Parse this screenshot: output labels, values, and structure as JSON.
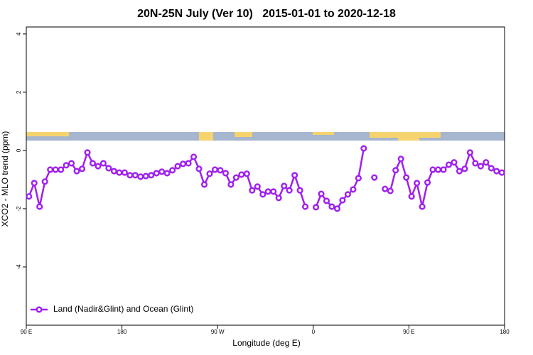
{
  "chart_data": {
    "type": "line",
    "title": "20N-25N July (Ver 10)   2015-01-01 to 2020-12-18",
    "x_label": "Longitude (deg E)",
    "y_label": "XCO2 - MLO trend (ppm)",
    "x": [
      92.5,
      97.5,
      102.5,
      107.5,
      112.5,
      117.5,
      122.5,
      127.5,
      132.5,
      137.5,
      142.5,
      147.5,
      152.5,
      157.5,
      162.5,
      167.5,
      172.5,
      177.5,
      182.5,
      187.5,
      192.5,
      197.5,
      202.5,
      207.5,
      212.5,
      217.5,
      222.5,
      227.5,
      232.5,
      237.5,
      242.5,
      247.5,
      252.5,
      257.5,
      262.5,
      267.5,
      272.5,
      277.5,
      282.5,
      287.5,
      292.5,
      297.5,
      302.5,
      307.5,
      312.5,
      317.5,
      322.5,
      327.5,
      332.5,
      337.5,
      342.5,
      347.5,
      352.5,
      357.5,
      362.5,
      367.5,
      372.5,
      377.5,
      382.5,
      387.5,
      392.5,
      397.5,
      402.5,
      407.5,
      412.5,
      417.5,
      422.5,
      427.5,
      432.5,
      437.5,
      442.5,
      447.5,
      452.5,
      457.5,
      462.5,
      467.5,
      472.5,
      477.5,
      482.5,
      487.5,
      492.5,
      497.5,
      502.5,
      507.5,
      512.5,
      517.5,
      522.5,
      527.5,
      532.5,
      537.5
    ],
    "series": [
      {
        "name": "Land (Nadir&Glint) and Ocean (Glint)",
        "color": "#a020f0",
        "values": [
          -1.58,
          -1.12,
          -1.93,
          -1.07,
          -0.66,
          -0.66,
          -0.66,
          -0.51,
          -0.44,
          -0.71,
          -0.63,
          -0.07,
          -0.44,
          -0.54,
          -0.44,
          -0.61,
          -0.71,
          -0.76,
          -0.76,
          -0.85,
          -0.85,
          -0.9,
          -0.88,
          -0.85,
          -0.78,
          -0.73,
          -0.78,
          -0.68,
          -0.54,
          -0.46,
          -0.44,
          -0.22,
          -0.63,
          -1.17,
          -0.8,
          -0.66,
          -0.68,
          -0.78,
          -1.17,
          -0.93,
          -0.83,
          -0.8,
          -1.37,
          -1.24,
          -1.51,
          -1.41,
          -1.41,
          -1.63,
          -1.22,
          -1.37,
          -0.85,
          -1.37,
          -1.93,
          null,
          -1.95,
          -1.49,
          -1.73,
          -1.93,
          -2.0,
          -1.71,
          -1.51,
          -1.34,
          -0.95,
          0.07,
          null,
          -0.93,
          null,
          -1.32,
          -1.39,
          -0.68,
          -0.29,
          -0.93,
          -1.58,
          -1.12,
          -1.93,
          -1.1,
          -0.66,
          -0.66,
          -0.66,
          -0.49,
          -0.41,
          -0.71,
          -0.63,
          -0.07,
          -0.44,
          -0.54,
          -0.41,
          -0.61,
          -0.71,
          -0.76
        ]
      }
    ],
    "xlim": [
      90,
      540
    ],
    "xticks": [
      {
        "value": 90,
        "label": "90 E"
      },
      180,
      {
        "value": 270,
        "label": "90 W"
      },
      {
        "value": 360,
        "label": "0"
      },
      {
        "value": 450,
        "label": "90 E"
      },
      {
        "value": 540,
        "label": "180"
      }
    ],
    "ylim": [
      -6,
      4.24
    ],
    "yticks": [
      -4,
      -2,
      0,
      2,
      4
    ],
    "legend": "bottom-left"
  }
}
